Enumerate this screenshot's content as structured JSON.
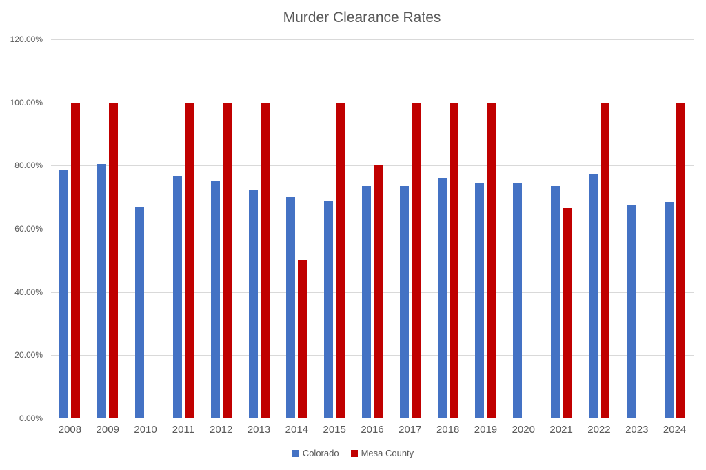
{
  "chart_data": {
    "type": "bar",
    "title": "Murder Clearance Rates",
    "categories": [
      "2008",
      "2009",
      "2010",
      "2011",
      "2012",
      "2013",
      "2014",
      "2015",
      "2016",
      "2017",
      "2018",
      "2019",
      "2020",
      "2021",
      "2022",
      "2023",
      "2024"
    ],
    "series": [
      {
        "name": "Colorado",
        "color": "#4472C4",
        "values": [
          78.5,
          80.5,
          67,
          76.5,
          75,
          72.5,
          70,
          69,
          73.5,
          73.5,
          76,
          74.5,
          74.5,
          73.5,
          77.5,
          67.5,
          68.5
        ]
      },
      {
        "name": "Mesa County",
        "color": "#C00000",
        "values": [
          100,
          100,
          null,
          100,
          100,
          100,
          50,
          100,
          80,
          100,
          100,
          100,
          null,
          66.5,
          100,
          null,
          100
        ]
      }
    ],
    "ylim": [
      0,
      120
    ],
    "ytick_values": [
      0,
      20,
      40,
      60,
      80,
      100,
      120
    ],
    "ytick_labels": [
      "0.00%",
      "20.00%",
      "40.00%",
      "60.00%",
      "80.00%",
      "100.00%",
      "120.00%"
    ],
    "grid": true,
    "legend_position": "bottom"
  },
  "colors": {
    "gridline": "#D9D9D9",
    "axis_line": "#BFBFBF",
    "text": "#595959"
  }
}
